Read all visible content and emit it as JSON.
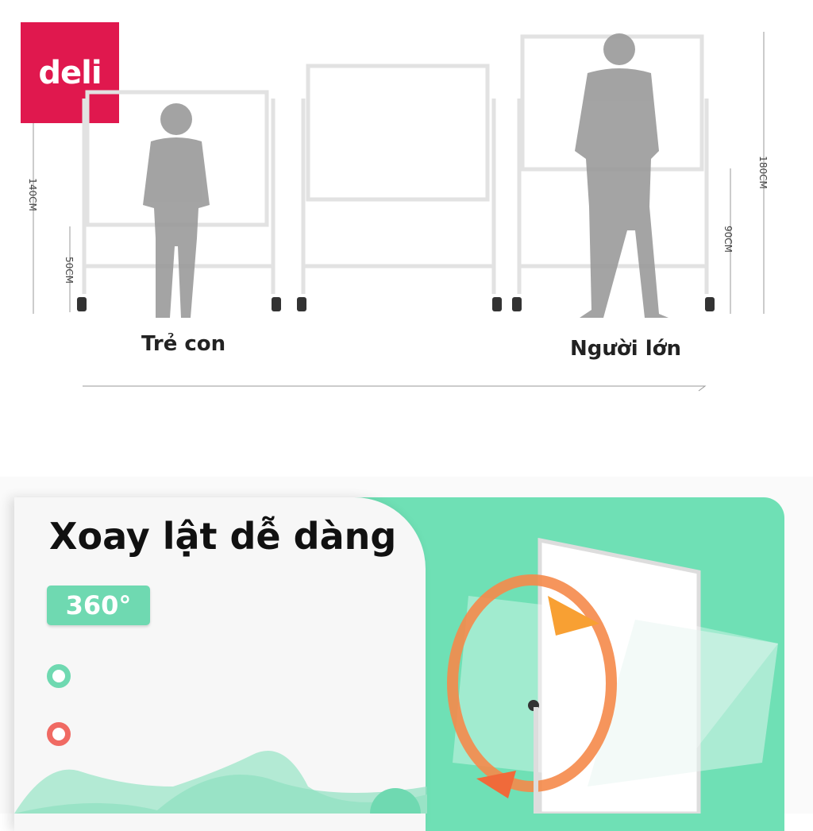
{
  "brand": {
    "logo_text": "deli",
    "color": "#e0184e"
  },
  "dimensions": {
    "child_height": "140CM",
    "child_board_base": "50CM",
    "adult_height": "180CM",
    "adult_board_base": "90CM"
  },
  "captions": {
    "child": "Trẻ con",
    "adult": "Người lớn"
  },
  "feature": {
    "title": "Xoay lật dễ dàng",
    "badge": "360°",
    "accent": "#6fe0b5",
    "bullet_colors": [
      "#6fd9b1",
      "#f06a63"
    ]
  }
}
